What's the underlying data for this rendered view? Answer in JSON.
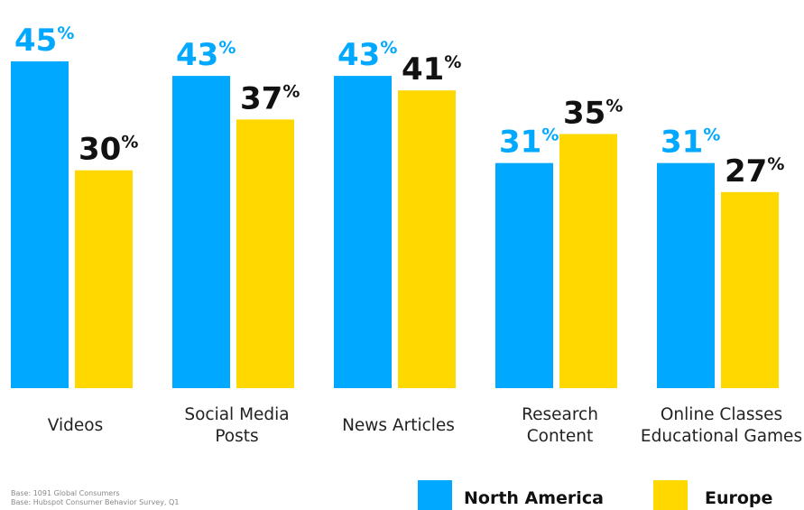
{
  "colors": {
    "north_america": "#00A8FF",
    "europe": "#FFD800",
    "europe_label": "#111111"
  },
  "chart_data": {
    "type": "bar",
    "title": "",
    "xlabel": "",
    "ylabel": "",
    "ylim": [
      0,
      45
    ],
    "grid": false,
    "legend_position": "bottom-right",
    "categories": [
      [
        "Videos"
      ],
      [
        "Social Media",
        "Posts"
      ],
      [
        "News Articles"
      ],
      [
        "Research",
        "Content"
      ],
      [
        "Online Classes",
        "Educational Games"
      ]
    ],
    "series": [
      {
        "name": "North America",
        "values": [
          45,
          43,
          43,
          31,
          31
        ]
      },
      {
        "name": "Europe",
        "values": [
          30,
          37,
          41,
          35,
          27
        ]
      }
    ],
    "value_suffix": "%"
  },
  "legend": {
    "north_america": "North America",
    "europe": "Europe"
  },
  "footnotes": [
    "Base: 1091 Global Consumers",
    "Base: Hubspot Consumer Behavior Survey, Q1"
  ]
}
